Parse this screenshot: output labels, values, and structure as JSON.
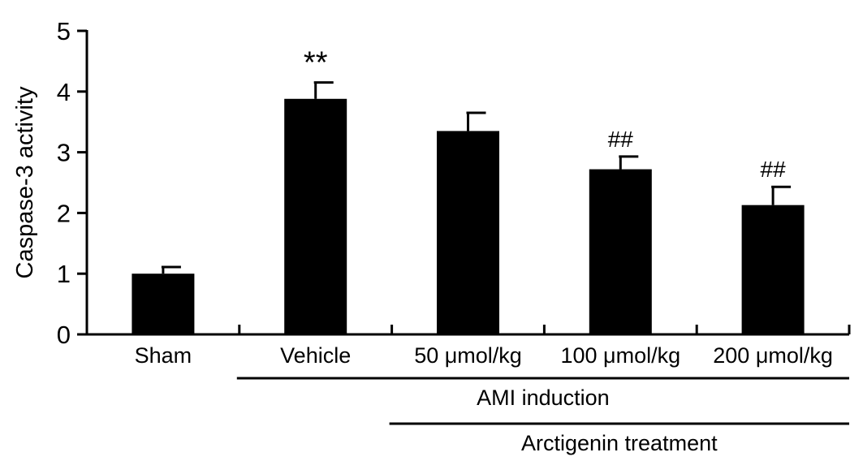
{
  "chart_data": {
    "type": "bar",
    "ylabel": "Caspase-3 activity",
    "xlabel": "",
    "ylim": [
      0,
      5
    ],
    "yticks": [
      0,
      1,
      2,
      3,
      4,
      5
    ],
    "grid": false,
    "bar_color": "#000000",
    "categories": [
      "Sham",
      "Vehicle",
      "50 μmol/kg",
      "100 μmol/kg",
      "200 μmol/kg"
    ],
    "values": [
      1.0,
      3.88,
      3.35,
      2.72,
      2.13
    ],
    "errors": [
      0.11,
      0.27,
      0.3,
      0.21,
      0.3
    ],
    "annotations": [
      "",
      "**",
      "",
      "##",
      "##"
    ],
    "groups": [
      {
        "label": "AMI induction",
        "from": 1,
        "to": 4
      },
      {
        "label": "Arctigenin treatment",
        "from": 2,
        "to": 4
      }
    ]
  }
}
